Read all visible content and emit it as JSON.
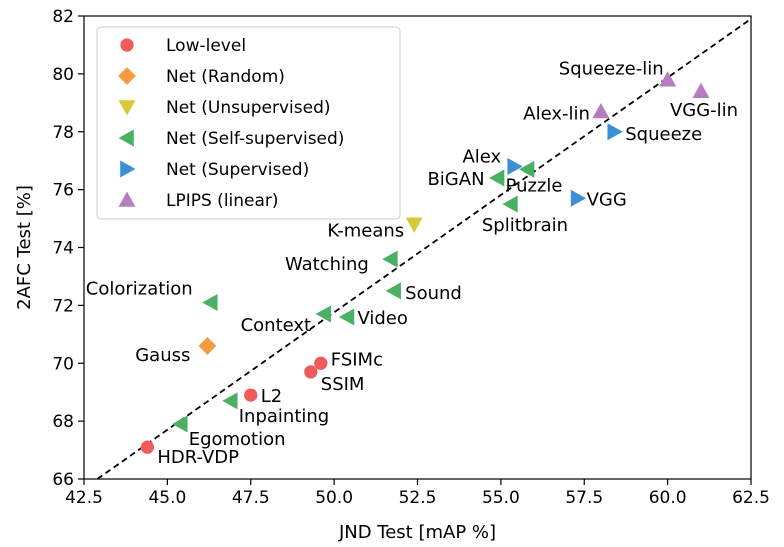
{
  "chart_data": {
    "type": "scatter",
    "xlabel": "JND Test [mAP %]",
    "ylabel": "2AFC Test [%]",
    "xlim": [
      42.5,
      62.5
    ],
    "ylim": [
      66,
      82
    ],
    "xticks": [
      "42.5",
      "45.0",
      "47.5",
      "50.0",
      "52.5",
      "55.0",
      "57.5",
      "60.0",
      "62.5"
    ],
    "yticks": [
      "66",
      "68",
      "70",
      "72",
      "74",
      "76",
      "78",
      "80",
      "82"
    ],
    "grid": false,
    "legend_placement": "top-left",
    "reference_line": {
      "style": "dashed",
      "from": [
        42.9,
        66.0
      ],
      "to": [
        62.5,
        81.9
      ]
    },
    "series": [
      {
        "name": "Low-level",
        "marker": "circle",
        "color": "#f15a5a",
        "points": [
          {
            "label": "HDR-VDP",
            "x": 44.4,
            "y": 67.1
          },
          {
            "label": "L2",
            "x": 47.5,
            "y": 68.9
          },
          {
            "label": "SSIM",
            "x": 49.3,
            "y": 69.7
          },
          {
            "label": "FSIMc",
            "x": 49.6,
            "y": 70.0
          }
        ]
      },
      {
        "name": "Net (Random)",
        "marker": "diamond",
        "color": "#f59b40",
        "points": [
          {
            "label": "Gauss",
            "x": 46.2,
            "y": 70.6
          }
        ]
      },
      {
        "name": "Net (Unsupervised)",
        "marker": "triangle-down",
        "color": "#d8c93a",
        "points": [
          {
            "label": "K-means",
            "x": 52.4,
            "y": 74.8
          }
        ]
      },
      {
        "name": "Net (Self-supervised)",
        "marker": "triangle-left",
        "color": "#4ab064",
        "points": [
          {
            "label": "Egomotion",
            "x": 45.4,
            "y": 67.9
          },
          {
            "label": "Inpainting",
            "x": 46.9,
            "y": 68.7
          },
          {
            "label": "Colorization",
            "x": 46.3,
            "y": 72.1
          },
          {
            "label": "Context",
            "x": 49.7,
            "y": 71.7
          },
          {
            "label": "Video",
            "x": 50.4,
            "y": 71.6
          },
          {
            "label": "Sound",
            "x": 51.8,
            "y": 72.5
          },
          {
            "label": "Watching",
            "x": 51.7,
            "y": 73.6
          },
          {
            "label": "BiGAN",
            "x": 54.9,
            "y": 76.4
          },
          {
            "label": "Splitbrain",
            "x": 55.3,
            "y": 75.5
          },
          {
            "label": "Puzzle",
            "x": 55.8,
            "y": 76.7
          }
        ]
      },
      {
        "name": "Net (Supervised)",
        "marker": "triangle-right",
        "color": "#3a8fd6",
        "points": [
          {
            "label": "Alex",
            "x": 55.4,
            "y": 76.8
          },
          {
            "label": "VGG",
            "x": 57.3,
            "y": 75.7
          },
          {
            "label": "Squeeze",
            "x": 58.4,
            "y": 78.0
          }
        ]
      },
      {
        "name": "LPIPS (linear)",
        "marker": "triangle-up",
        "color": "#b67cc0",
        "points": [
          {
            "label": "Alex-lin",
            "x": 58.0,
            "y": 78.7
          },
          {
            "label": "Squeeze-lin",
            "x": 60.0,
            "y": 79.8
          },
          {
            "label": "VGG-lin",
            "x": 61.0,
            "y": 79.4
          }
        ]
      }
    ]
  }
}
